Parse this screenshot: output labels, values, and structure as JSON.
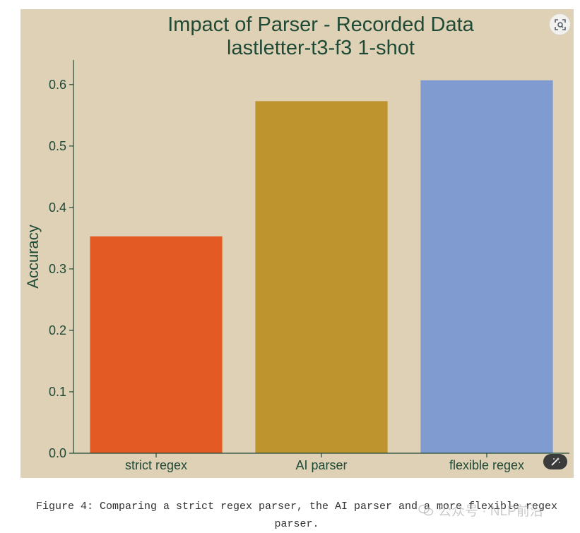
{
  "chart_data": {
    "type": "bar",
    "title": [
      "Impact of Parser - Recorded Data",
      "lastletter-t3-f3 1-shot"
    ],
    "xlabel": "",
    "ylabel": "Accuracy",
    "categories": [
      "strict regex",
      "AI parser",
      "flexible regex"
    ],
    "values": [
      0.353,
      0.573,
      0.607
    ],
    "ylim": [
      0,
      0.64
    ],
    "yticks": [
      0.0,
      0.1,
      0.2,
      0.3,
      0.4,
      0.5,
      0.6
    ],
    "ytick_labels": [
      "0.0",
      "0.1",
      "0.2",
      "0.3",
      "0.4",
      "0.5",
      "0.6"
    ],
    "grid": false,
    "colors": {
      "background": "#ded1b6",
      "text": "#1f4a36",
      "bars": [
        "#e35a25",
        "#be942f",
        "#7f9bd0"
      ]
    }
  },
  "caption": "Figure 4: Comparing a strict regex parser, the AI parser and a more flexible regex parser.",
  "watermark": "公众号 · NLP前沿",
  "icons": {
    "ocr": "text-scan-icon",
    "magic": "magic-wand-icon"
  }
}
